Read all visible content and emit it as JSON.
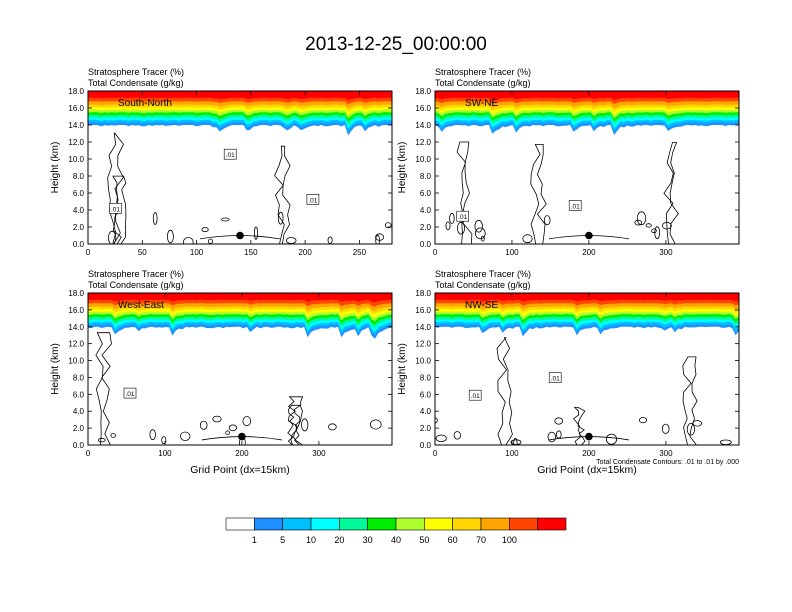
{
  "page": {
    "title": "2013-12-25_00:00:00"
  },
  "chart_data": {
    "type": "contour",
    "labels": {
      "tracer": "Stratosphere Tracer",
      "tracer_units": "(%)",
      "condensate": "Total Condensate",
      "condensate_units": "(g/kg)",
      "ylabel": "Height (km)",
      "xlabel": "Grid Point (dx=15km)",
      "contour_info": "Total Condensate Contours: .01 to .01 by .000"
    },
    "y_ticks": [
      "0.0",
      "2.0",
      "4.0",
      "6.0",
      "8.0",
      "10.0",
      "12.0",
      "14.0",
      "16.0",
      "18.0"
    ],
    "ylim": [
      0,
      18
    ],
    "colorbar": {
      "labels": [
        "1",
        "5",
        "10",
        "20",
        "30",
        "40",
        "50",
        "60",
        "70",
        "100"
      ],
      "colors": [
        "#ffffff",
        "#1e90ff",
        "#00bfff",
        "#00ffff",
        "#00fa9a",
        "#00ee00",
        "#adff2f",
        "#ffff00",
        "#ffd700",
        "#ffa500",
        "#ff4500",
        "#ff0000"
      ]
    },
    "panels": [
      {
        "name": "South-North",
        "xlim": [
          0,
          280
        ],
        "x_ticks": [
          0,
          50,
          100,
          150,
          200,
          250
        ],
        "marker_x": 140,
        "contour_labels": [
          ".01",
          ".01",
          ".01"
        ],
        "show_xlabel": false,
        "show_contour_info": false
      },
      {
        "name": "SW-NE",
        "xlim": [
          0,
          395
        ],
        "x_ticks": [
          0,
          100,
          200,
          300
        ],
        "marker_x": 200,
        "contour_labels": [
          ".01",
          ".01"
        ],
        "show_xlabel": false,
        "show_contour_info": false
      },
      {
        "name": "West-East",
        "xlim": [
          0,
          395
        ],
        "x_ticks": [
          0,
          100,
          200,
          300
        ],
        "marker_x": 200,
        "contour_labels": [
          ".01"
        ],
        "show_xlabel": true,
        "show_contour_info": false
      },
      {
        "name": "NW-SE",
        "xlim": [
          0,
          395
        ],
        "x_ticks": [
          0,
          100,
          200,
          300
        ],
        "marker_x": 200,
        "contour_labels": [
          ".01",
          ".01"
        ],
        "show_xlabel": true,
        "show_contour_info": true
      }
    ]
  }
}
